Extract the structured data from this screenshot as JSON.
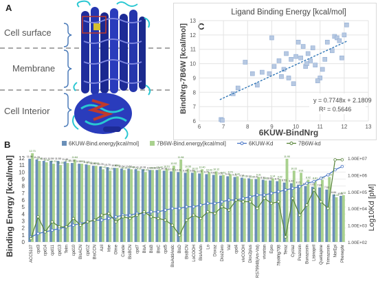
{
  "panel_a": {
    "letter": "A",
    "labels": [
      "Cell surface",
      "Membrane",
      "Cell Interior"
    ]
  },
  "panel_c_letter": "C",
  "panel_b_letter": "B",
  "chart_data": [
    {
      "type": "scatter",
      "title": "Ligand Binding Energy [kcal/mol]",
      "xlabel": "6KUW-BindNrg",
      "ylabel": "BindNrg-7B6W [kcal/mol]",
      "xlim": [
        6,
        13
      ],
      "ylim": [
        6,
        13
      ],
      "xticks": [
        6,
        7,
        8,
        9,
        10,
        11,
        12,
        13
      ],
      "yticks": [
        6,
        7,
        8,
        9,
        10,
        11,
        12,
        13
      ],
      "grid": true,
      "trendline": {
        "equation": "y = 0.7748x + 2.1809",
        "r2": "R² = 0.5646",
        "slope": 0.7748,
        "intercept": 2.1809,
        "x_range": [
          6.85,
          12.1
        ]
      },
      "points": [
        [
          6.9,
          6.1
        ],
        [
          6.95,
          6.05
        ],
        [
          7.4,
          7.9
        ],
        [
          7.6,
          8.3
        ],
        [
          7.9,
          10.1
        ],
        [
          8.2,
          9.3
        ],
        [
          8.6,
          9.4
        ],
        [
          8.9,
          9.3
        ],
        [
          9.0,
          11.8
        ],
        [
          9.1,
          9.8
        ],
        [
          9.3,
          10.2
        ],
        [
          9.5,
          9.6
        ],
        [
          9.6,
          10.7
        ],
        [
          9.7,
          9.0
        ],
        [
          9.8,
          10.3
        ],
        [
          9.9,
          8.6
        ],
        [
          10.0,
          10.5
        ],
        [
          10.1,
          11.5
        ],
        [
          10.2,
          10.4
        ],
        [
          10.3,
          11.2
        ],
        [
          10.4,
          9.8
        ],
        [
          10.5,
          10.7
        ],
        [
          10.6,
          10.2
        ],
        [
          10.7,
          11.1
        ],
        [
          10.8,
          9.9
        ],
        [
          11.0,
          9.0
        ],
        [
          11.1,
          9.6
        ],
        [
          11.2,
          10.3
        ],
        [
          11.3,
          11.5
        ],
        [
          11.6,
          11.9
        ],
        [
          11.7,
          11.8
        ],
        [
          11.8,
          11.6
        ],
        [
          11.9,
          10.4
        ],
        [
          12.0,
          12.0
        ],
        [
          12.1,
          12.7
        ],
        [
          10.9,
          8.8
        ],
        [
          9.4,
          9.1
        ],
        [
          8.4,
          8.5
        ],
        [
          10.45,
          10.0
        ],
        [
          11.5,
          10.9
        ]
      ]
    },
    {
      "type": "bar",
      "ylabel": "Binding Energy [kcal/mol]",
      "y2label": "Log10Kd [pM]",
      "ylim": [
        0,
        12
      ],
      "yticks": [
        0,
        1,
        2,
        3,
        4,
        5,
        6,
        7,
        8,
        9,
        10,
        11,
        12
      ],
      "y2ticks": [
        "1.00E+02",
        "1.00E+03",
        "1.00E+04",
        "1.00E+05",
        "1.00E+06",
        "1.00E+07"
      ],
      "legend": [
        {
          "name": "6KUW-Bind.energy[kcal/mol]",
          "kind": "bar",
          "color": "#6a8fb8"
        },
        {
          "name": "7B6W-Bind.energy[kcal/mol]",
          "kind": "bar",
          "color": "#a9d18e"
        },
        {
          "name": "6KUW-Kd",
          "kind": "line",
          "color": "#4472c4"
        },
        {
          "name": "7B6W-kd",
          "kind": "line",
          "color": "#548235"
        }
      ],
      "legend_position": "top",
      "categories": [
        "ACC5107",
        "cpd3",
        "cpd14",
        "cpd11",
        "cpd13",
        "Telm",
        "cpd10",
        "BisACN",
        "cpd12",
        "BisCCN",
        "Azil",
        "Irbe",
        "Olme",
        "Cande",
        "BisBCN",
        "cpd7",
        "BisA",
        "BisB",
        "BisC",
        "cpd5",
        "BisAddAndc",
        "BisD",
        "BisBCN",
        "LoCOOH",
        "BisAAdn",
        "Lo",
        "Doxaz",
        "DiozZero",
        "Val",
        "cpd4",
        "vivCOOH",
        "Diox2plus",
        "RS79948(Am-Val)",
        "vivartan",
        "Epro",
        "78oWig70B",
        "Teraz",
        "Cyclaz",
        "Prazosin",
        "Bunazosin",
        "Lisinopril",
        "Quetiapine",
        "Trimazosin",
        "NorEpi",
        "Phenephr"
      ],
      "series": [
        {
          "name": "6KUW-Bind.energy[kcal/mol]",
          "values": [
            11.9,
            11.8,
            11.6,
            11.6,
            11.6,
            11.5,
            11.3,
            11.2,
            11.1,
            10.9,
            10.8,
            10.7,
            10.6,
            10.5,
            10.5,
            10.4,
            10.4,
            10.3,
            10.3,
            10.2,
            10.1,
            10.0,
            9.9,
            9.9,
            9.8,
            9.7,
            9.6,
            9.5,
            9.4,
            9.3,
            9.2,
            9.1,
            9.0,
            8.9,
            8.8,
            8.7,
            8.5,
            8.4,
            8.2,
            8.0,
            7.9,
            7.8,
            7.5,
            6.8,
            6.6
          ]
        },
        {
          "name": "7B6W-Bind.energy[kcal/mol]",
          "values": [
            12.7,
            11.6,
            11.4,
            11.2,
            11.0,
            11.3,
            11.8,
            11.2,
            11.0,
            10.9,
            10.4,
            10.2,
            10.6,
            10.3,
            10.4,
            10.2,
            10.0,
            10.3,
            10.4,
            10.5,
            10.9,
            11.8,
            10.5,
            10.2,
            10.4,
            10.0,
            10.1,
            9.6,
            9.7,
            9.4,
            9.1,
            9.0,
            9.3,
            8.8,
            9.1,
            9.0,
            11.9,
            10.2,
            9.9,
            8.9,
            8.8,
            8.9,
            9.3,
            6.4,
            6.7
          ]
        },
        {
          "name": "6KUW-Kd",
          "log10": [
            2.3,
            2.5,
            2.6,
            2.7,
            2.8,
            2.9,
            3.0,
            3.1,
            3.2,
            3.3,
            3.3,
            3.4,
            3.5,
            3.6,
            3.6,
            3.7,
            3.7,
            3.8,
            3.8,
            3.9,
            4.0,
            4.0,
            4.1,
            4.1,
            4.2,
            4.3,
            4.3,
            4.4,
            4.5,
            4.5,
            4.6,
            4.7,
            4.8,
            4.8,
            4.9,
            5.0,
            5.1,
            5.2,
            5.3,
            5.5,
            5.6,
            5.8,
            6.0,
            6.3,
            6.5
          ]
        },
        {
          "name": "7B6W-kd",
          "log10": [
            2.2,
            3.5,
            2.6,
            3.2,
            2.9,
            2.9,
            3.4,
            3.0,
            3.2,
            3.3,
            3.6,
            3.7,
            3.2,
            3.5,
            3.4,
            3.6,
            3.8,
            3.5,
            3.4,
            3.3,
            3.0,
            2.4,
            3.3,
            3.6,
            3.4,
            3.8,
            3.7,
            4.1,
            3.9,
            4.5,
            4.4,
            4.4,
            4.0,
            4.6,
            4.3,
            4.4,
            2.3,
            4.6,
            3.6,
            4.2,
            5.1,
            4.4,
            4.0,
            6.9,
            6.9
          ]
        }
      ],
      "data_labels_6kuw": [
        "11.94",
        "11.78",
        "11.61",
        "11.59",
        "11.55",
        "11.46",
        "11.33",
        "11.19",
        "11.10",
        "10.93",
        "10.78",
        "10.70",
        "10.63",
        "10.54",
        "10.50",
        "10.41",
        "10.38",
        "10.33",
        "10.28",
        "10.20",
        "10.12",
        "10.01",
        "9.94",
        "9.88",
        "9.79",
        "9.70",
        "9.62",
        "9.51",
        "9.43",
        "9.31",
        "9.24",
        "9.12",
        "9.01",
        "8.91",
        "8.82",
        "8.71",
        "8.53",
        "8.42",
        "8.21",
        "8.03",
        "7.92",
        "7.81",
        "7.53",
        "6.84",
        "6.63"
      ],
      "data_labels_7b6w": [
        "12.73",
        "11.61",
        "11.42",
        "11.22",
        "11.03",
        "11.32",
        "11.84",
        "11.21",
        "11.02",
        "10.93",
        "10.42",
        "10.23",
        "10.61",
        "10.32",
        "10.44",
        "10.21",
        "10.03",
        "10.31",
        "10.42",
        "10.51",
        "10.92",
        "11.84",
        "10.55",
        "10.22",
        "10.40",
        "10.03",
        "10.12",
        "9.61",
        "9.73",
        "9.42",
        "9.13",
        "9.02",
        "9.31",
        "8.83",
        "9.14",
        "9.02",
        "11.90",
        "10.22",
        "9.91",
        "8.92",
        "8.81",
        "8.93",
        "9.34",
        "6.43",
        "6.72"
      ]
    }
  ]
}
